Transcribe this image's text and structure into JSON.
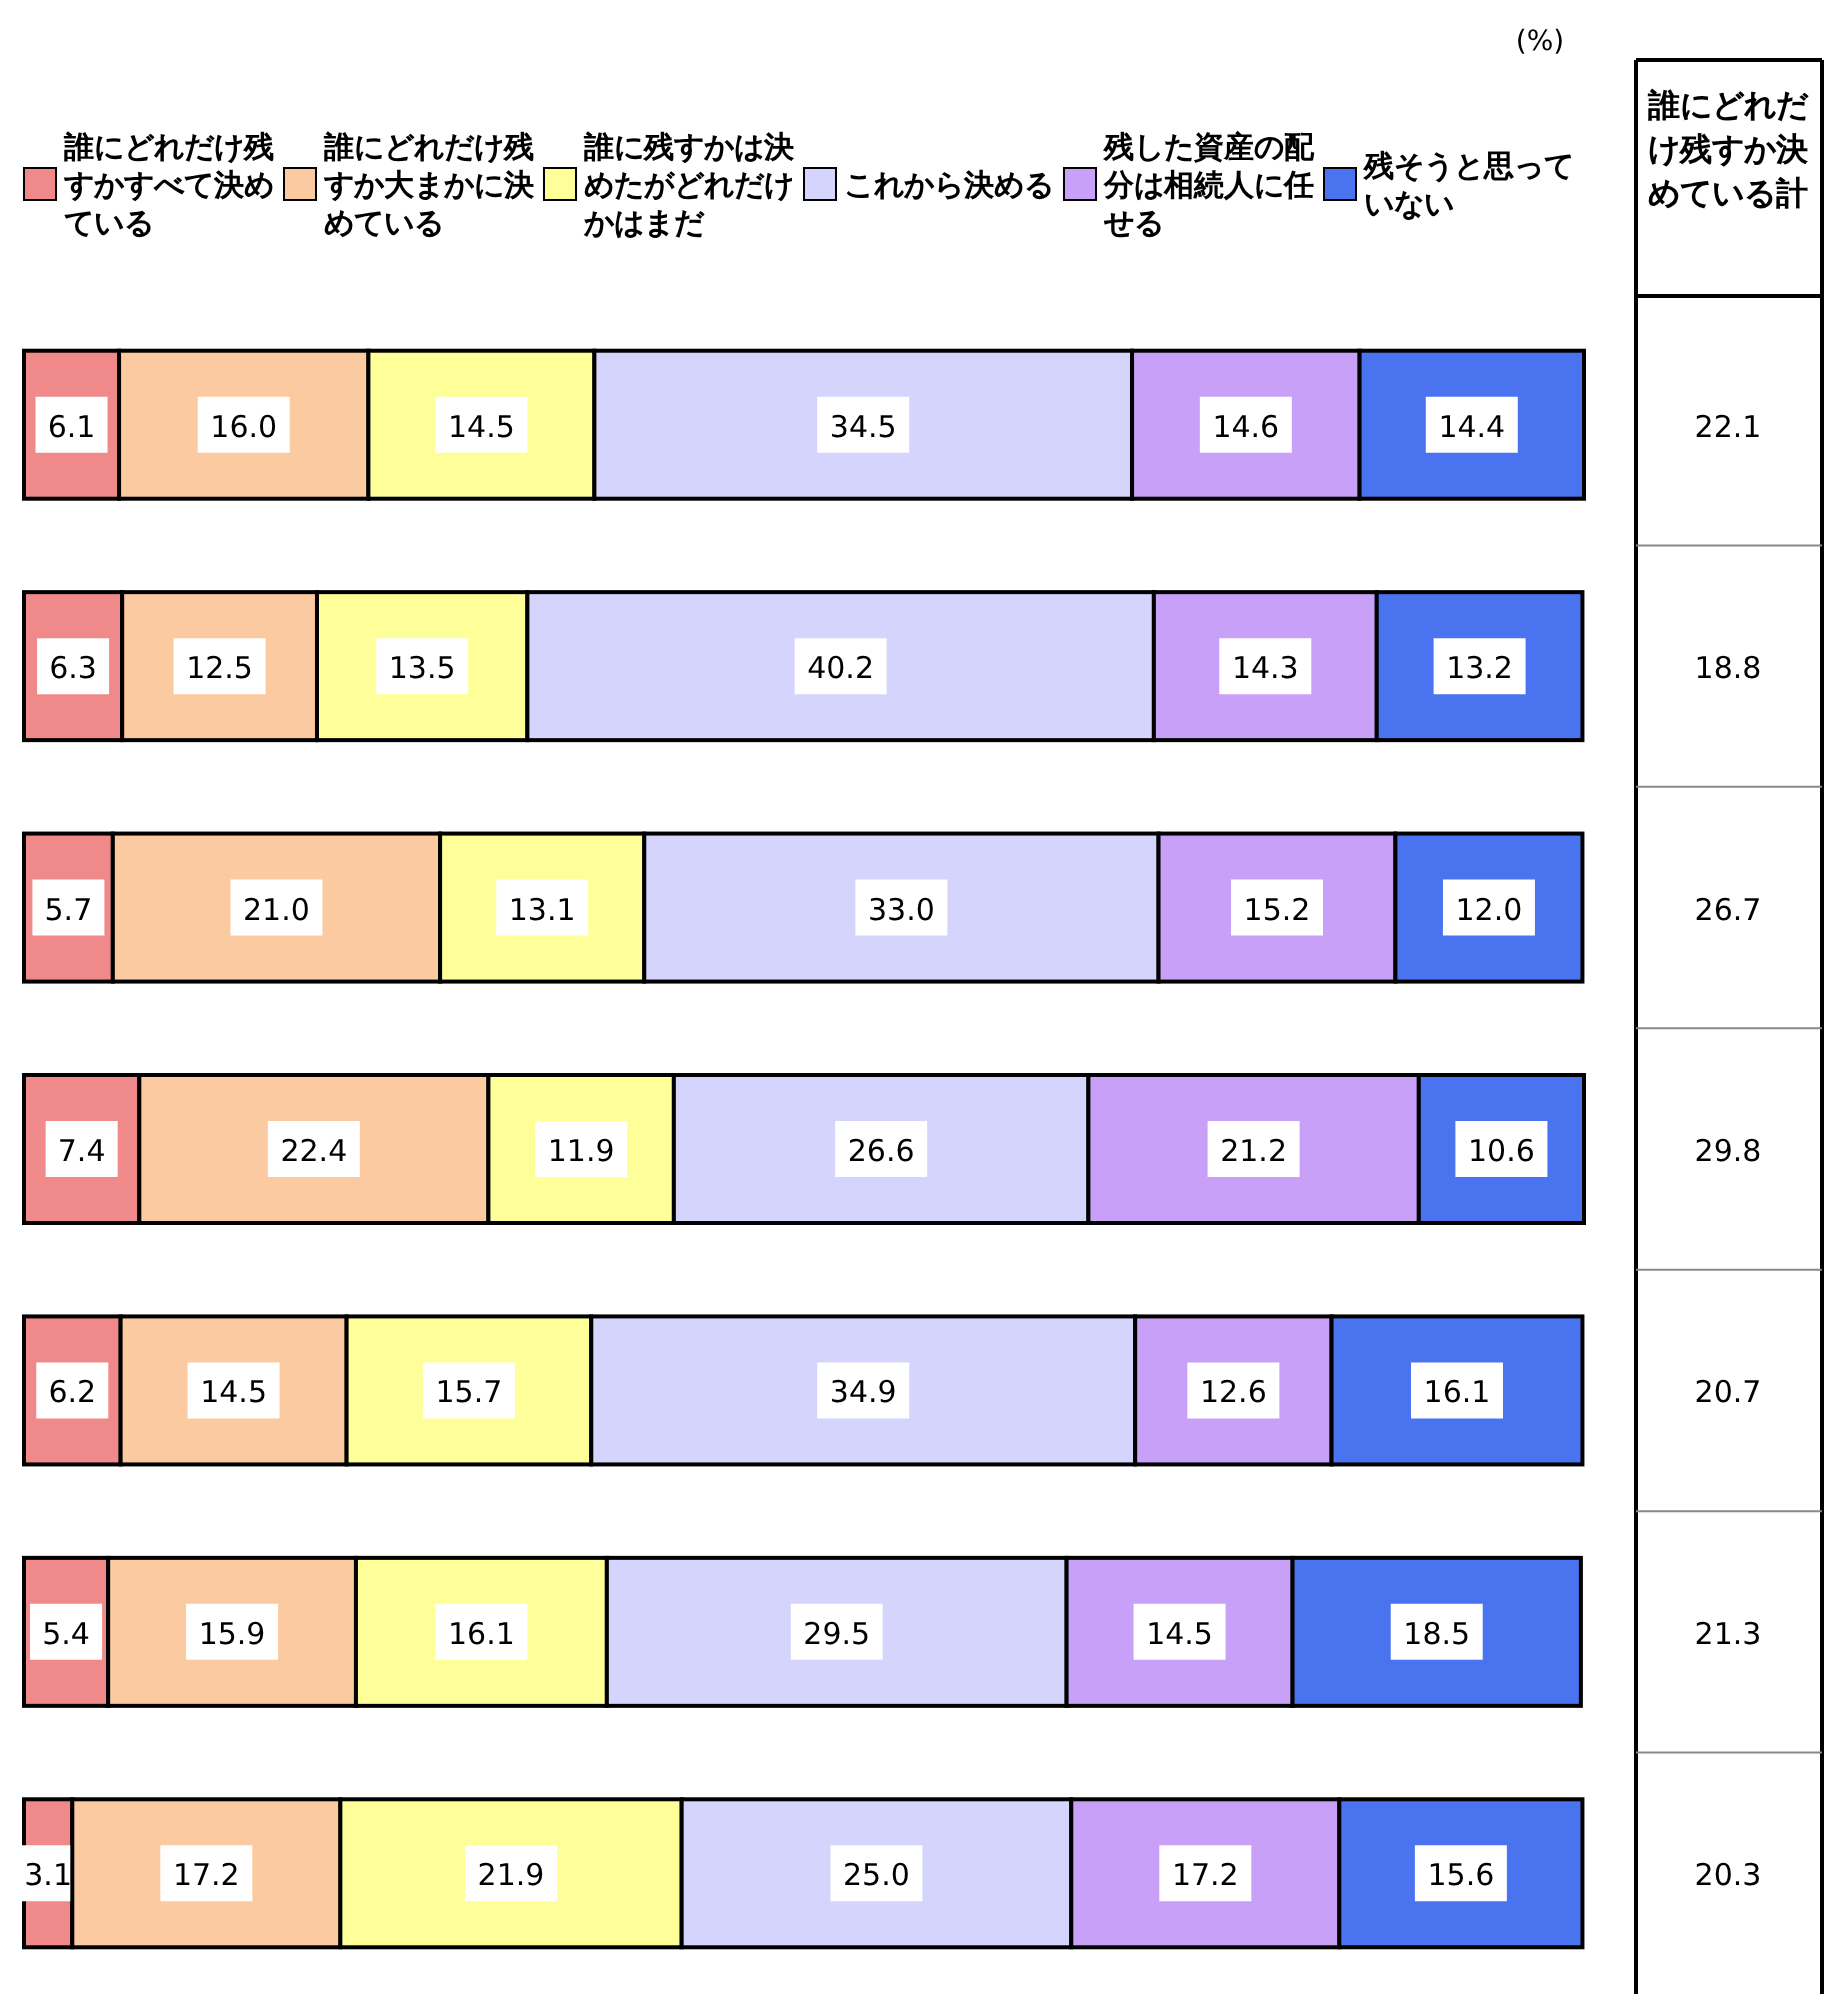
{
  "chart_data": {
    "type": "bar",
    "orientation": "horizontal",
    "stacked": true,
    "legend": "top",
    "categories": [
      null,
      null,
      null,
      null,
      null,
      null,
      null
    ],
    "series": [
      {
        "name": "誰にどれだけ残すかすべて決めている",
        "color": "#f08a8a",
        "values": [
          6.1,
          6.3,
          5.7,
          7.4,
          6.2,
          5.4,
          3.1
        ],
        "value_labels": [
          "6.1",
          "6.3",
          "5.7",
          "7.4",
          "6.2",
          "5.4",
          "3.1"
        ]
      },
      {
        "name": "誰にどれだけ残すか大まかに決めている",
        "color": "#fccaa0",
        "values": [
          16.0,
          12.5,
          21.0,
          22.4,
          14.5,
          15.9,
          17.2
        ],
        "value_labels": [
          "16.0",
          "12.5",
          "21.0",
          "22.4",
          "14.5",
          "15.9",
          "17.2"
        ]
      },
      {
        "name": "誰に残すかは決めたがどれだけかはまだ",
        "color": "#ffff99",
        "values": [
          14.5,
          13.5,
          13.1,
          11.9,
          15.7,
          16.1,
          21.9
        ],
        "value_labels": [
          "14.5",
          "13.5",
          "13.1",
          "11.9",
          "15.7",
          "16.1",
          "21.9"
        ]
      },
      {
        "name": "これから決める",
        "color": "#d4d4fc",
        "values": [
          34.5,
          40.2,
          33.0,
          26.6,
          34.9,
          29.5,
          25.0
        ],
        "value_labels": [
          "34.5",
          "40.2",
          "33.0",
          "26.6",
          "34.9",
          "29.5",
          "25.0"
        ]
      },
      {
        "name": "残した資産の配分は相続人に任せる",
        "color": "#c9a0f8",
        "values": [
          14.6,
          14.3,
          15.2,
          21.2,
          12.6,
          14.5,
          17.2
        ],
        "value_labels": [
          "14.6",
          "14.3",
          "15.2",
          "21.2",
          "12.6",
          "14.5",
          "17.2"
        ]
      },
      {
        "name": "残そうと思っていない",
        "color": "#4a73f0",
        "values": [
          14.4,
          13.2,
          12.0,
          10.6,
          16.1,
          18.5,
          15.6
        ],
        "value_labels": [
          "14.4",
          "13.2",
          "12.0",
          "10.6",
          "16.1",
          "18.5",
          "15.6"
        ]
      }
    ],
    "annotations": [
      "(%)",
      "誰にどれだけ残すか決めている計",
      "22.1",
      "18.8",
      "26.7",
      "29.8",
      "20.7",
      "21.3",
      "20.3"
    ]
  }
}
